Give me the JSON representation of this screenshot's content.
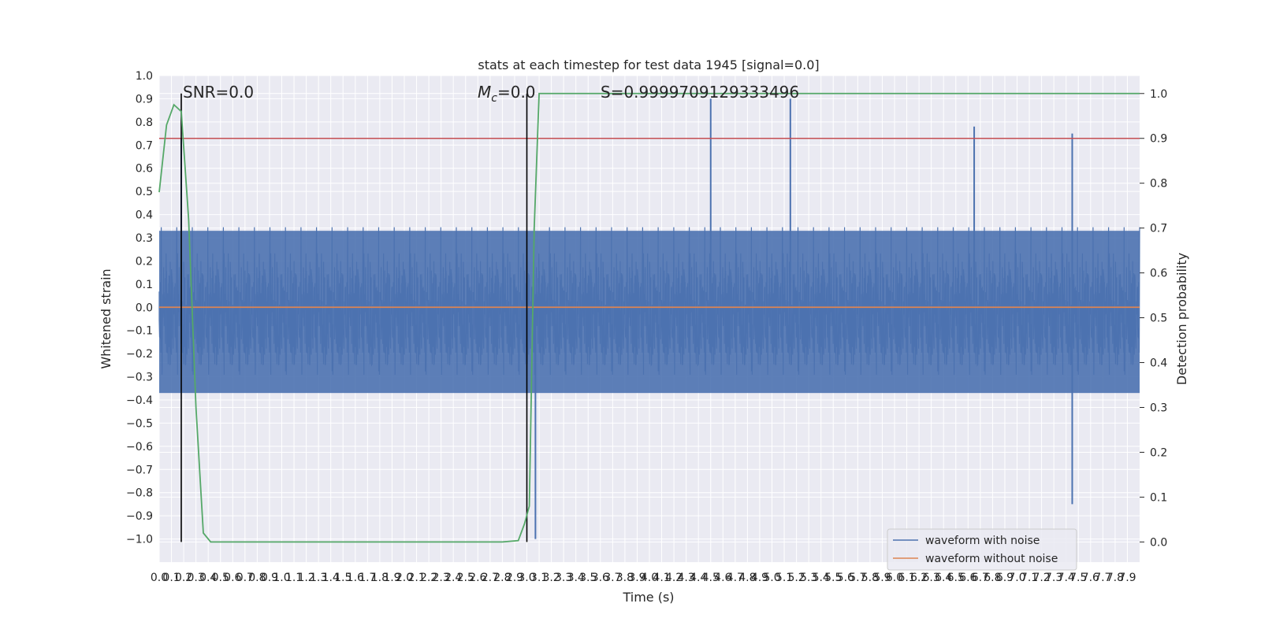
{
  "chart_data": {
    "type": "line",
    "title": "stats at each timestep for test data 1945 [signal=0.0]",
    "xlabel": "Time (s)",
    "ylabel": "Whitened strain",
    "ylabel_right": "Detection probability",
    "xlim": [
      0.0,
      8.0
    ],
    "ylim": [
      -1.1,
      1.0
    ],
    "ylim_right": [
      -0.045,
      1.04
    ],
    "x_ticks": [
      "0.0",
      "0.1",
      "0.2",
      "0.3",
      "0.4",
      "0.5",
      "0.6",
      "0.7",
      "0.8",
      "0.9",
      "1.0",
      "1.1",
      "1.2",
      "1.3",
      "1.4",
      "1.5",
      "1.6",
      "1.7",
      "1.8",
      "1.9",
      "2.0",
      "2.1",
      "2.2",
      "2.3",
      "2.4",
      "2.5",
      "2.6",
      "2.7",
      "2.8",
      "2.9",
      "3.0",
      "3.1",
      "3.2",
      "3.3",
      "3.4",
      "3.5",
      "3.6",
      "3.7",
      "3.8",
      "3.9",
      "4.0",
      "4.1",
      "4.2",
      "4.3",
      "4.4",
      "4.5",
      "4.6",
      "4.7",
      "4.8",
      "4.9",
      "5.0",
      "5.1",
      "5.2",
      "5.3",
      "5.4",
      "5.5",
      "5.6",
      "5.7",
      "5.8",
      "5.9",
      "6.0",
      "6.1",
      "6.2",
      "6.3",
      "6.4",
      "6.5",
      "6.6",
      "6.7",
      "6.8",
      "6.9",
      "7.0",
      "7.1",
      "7.2",
      "7.3",
      "7.4",
      "7.5",
      "7.6",
      "7.7",
      "7.8",
      "7.9"
    ],
    "y_ticks": [
      "1.0",
      "0.9",
      "0.8",
      "0.7",
      "0.6",
      "0.5",
      "0.4",
      "0.3",
      "0.2",
      "0.1",
      "0.0",
      "−0.1",
      "−0.2",
      "−0.3",
      "−0.4",
      "−0.5",
      "−0.6",
      "−0.7",
      "−0.8",
      "−0.9",
      "−1.0"
    ],
    "y_right_ticks": [
      "1.0",
      "0.9",
      "0.8",
      "0.7",
      "0.6",
      "0.5",
      "0.4",
      "0.3",
      "0.2",
      "0.1",
      "0.0"
    ],
    "grid": true,
    "legend_placement": "lower-right",
    "series": [
      {
        "name": "waveform with noise",
        "color": "#4c72b0",
        "style": "dense noise, approx. ±0.35 band with spikes up to 0.9 and down to -1.0",
        "notable_points": [
          [
            0.18,
            0.73
          ],
          [
            3.07,
            -1.0
          ],
          [
            4.5,
            0.9
          ],
          [
            5.15,
            0.9
          ],
          [
            6.65,
            0.78
          ],
          [
            7.45,
            0.75
          ],
          [
            7.45,
            -0.85
          ]
        ]
      },
      {
        "name": "waveform without noise",
        "color": "#dd8452",
        "x": [
          0.0,
          8.0
        ],
        "y": [
          0.0,
          0.0
        ]
      },
      {
        "color": "#55a868",
        "axis": "right",
        "x": [
          0.0,
          0.06,
          0.12,
          0.18,
          0.24,
          0.3,
          0.36,
          0.42,
          0.6,
          1.0,
          2.0,
          2.5,
          2.8,
          2.93,
          2.98,
          3.02,
          3.06,
          3.1,
          4.0,
          6.0,
          8.0
        ],
        "y": [
          0.78,
          0.93,
          0.975,
          0.96,
          0.72,
          0.3,
          0.02,
          0.0,
          0.0,
          0.0,
          0.0,
          0.0,
          0.0,
          0.003,
          0.04,
          0.08,
          0.7,
          1.0,
          1.0,
          1.0,
          1.0
        ]
      }
    ],
    "reference_lines": [
      {
        "kind": "horizontal",
        "axis": "right",
        "y": 0.9,
        "color": "#c44e52"
      },
      {
        "kind": "vertical",
        "x": 0.18,
        "color": "#000000"
      },
      {
        "kind": "vertical",
        "x": 3.0,
        "color": "#000000"
      }
    ],
    "annotations": {
      "snr": "SNR=0.0",
      "mc_symbol": "M",
      "mc_subscript": "c",
      "mc_value": "=0.0",
      "s": "S=0.9999709129333496"
    }
  }
}
